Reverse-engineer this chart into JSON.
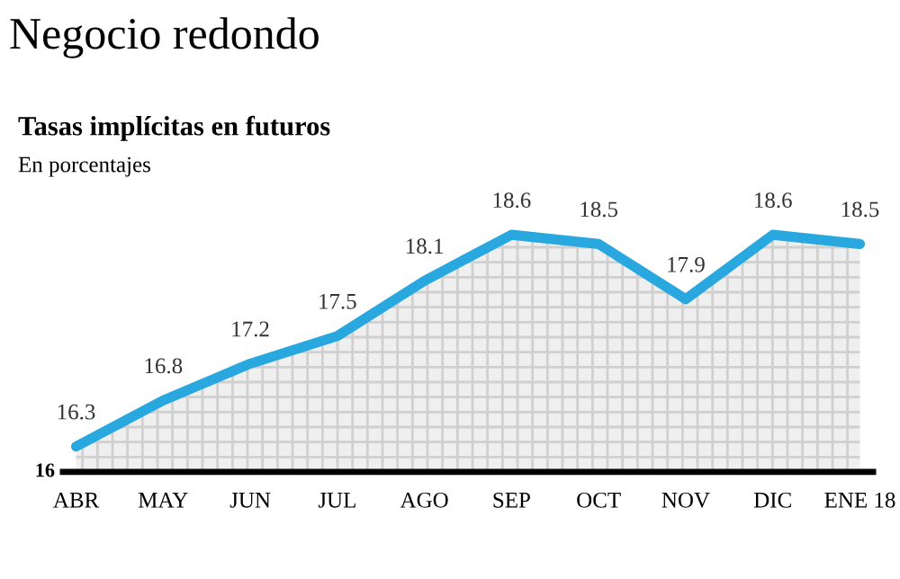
{
  "chart_data": {
    "type": "area",
    "title": "Negocio redondo",
    "subtitle": "Tasas implícitas en futuros",
    "ylabel": "En porcentajes",
    "categories": [
      "ABR",
      "MAY",
      "JUN",
      "JUL",
      "AGO",
      "SEP",
      "OCT",
      "NOV",
      "DIC",
      "ENE 18"
    ],
    "series": [
      {
        "color": "#29a8e0",
        "values": [
          16.3,
          16.8,
          17.2,
          17.5,
          18.1,
          18.6,
          18.5,
          17.9,
          18.6,
          18.5
        ]
      }
    ],
    "annotations": [
      "16"
    ],
    "data_labels": true,
    "grid": false,
    "line_style": "solid",
    "marker": "none"
  }
}
